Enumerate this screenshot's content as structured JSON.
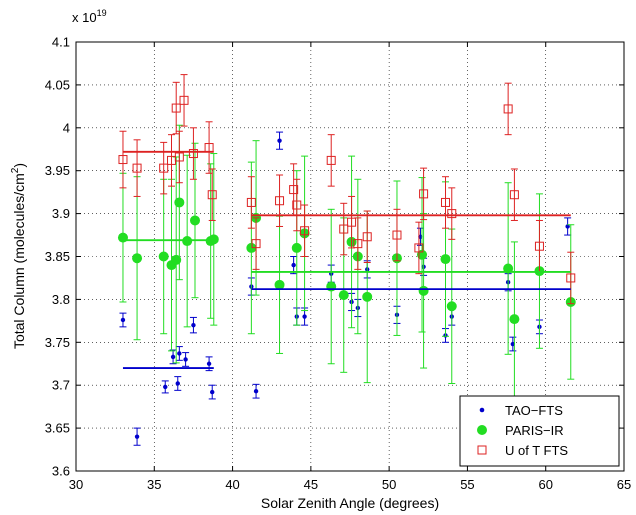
{
  "chart_data": {
    "type": "scatter",
    "title": "",
    "xlabel": "Solar Zenith Angle (degrees)",
    "ylabel": "Total Column (molecules/cm²)",
    "ylabel_main": "Total Column (molecules/cm",
    "ylabel_sup": "2",
    "ylabel_end": ")",
    "y_multiplier_base": "x 10",
    "y_multiplier_exp": "19",
    "xlim": [
      30,
      65
    ],
    "ylim": [
      3.6,
      4.1
    ],
    "xticks": [
      30,
      35,
      40,
      45,
      50,
      55,
      60,
      65
    ],
    "xtick_labels": [
      "30",
      "35",
      "40",
      "45",
      "50",
      "55",
      "60",
      "65"
    ],
    "yticks": [
      3.6,
      3.65,
      3.7,
      3.75,
      3.8,
      3.85,
      3.9,
      3.95,
      4.0,
      4.05,
      4.1
    ],
    "ytick_labels": [
      "3.6",
      "3.65",
      "3.7",
      "3.75",
      "3.8",
      "3.85",
      "3.9",
      "3.95",
      "4",
      "4.05",
      "4.1"
    ],
    "grid": true,
    "legend": "bottom-right",
    "series": [
      {
        "name": "TAO−FTS",
        "color": "#0000cc",
        "marker": "dot",
        "points": [
          [
            33.0,
            3.776,
            0.008
          ],
          [
            33.9,
            3.64,
            0.01
          ],
          [
            35.7,
            3.698,
            0.007
          ],
          [
            36.2,
            3.733,
            0.008
          ],
          [
            36.5,
            3.702,
            0.008
          ],
          [
            36.6,
            3.737,
            0.008
          ],
          [
            37.0,
            3.73,
            0.008
          ],
          [
            37.5,
            3.77,
            0.009
          ],
          [
            38.5,
            3.725,
            0.008
          ],
          [
            38.7,
            3.692,
            0.008
          ],
          [
            41.2,
            3.815,
            0.01
          ],
          [
            41.5,
            3.693,
            0.008
          ],
          [
            43.0,
            3.985,
            0.01
          ],
          [
            43.9,
            3.84,
            0.01
          ],
          [
            44.1,
            3.78,
            0.01
          ],
          [
            44.6,
            3.78,
            0.01
          ],
          [
            46.3,
            3.83,
            0.01
          ],
          [
            47.6,
            3.797,
            0.01
          ],
          [
            48.0,
            3.79,
            0.01
          ],
          [
            48.6,
            3.835,
            0.01
          ],
          [
            50.5,
            3.782,
            0.01
          ],
          [
            52.0,
            3.873,
            0.01
          ],
          [
            52.2,
            3.838,
            0.01
          ],
          [
            53.6,
            3.758,
            0.008
          ],
          [
            54.0,
            3.78,
            0.01
          ],
          [
            57.6,
            3.82,
            0.01
          ],
          [
            57.9,
            3.748,
            0.008
          ],
          [
            59.6,
            3.768,
            0.008
          ],
          [
            61.4,
            3.885,
            0.01
          ]
        ],
        "fit": {
          "segments": [
            [
              33.0,
              38.8,
              3.72
            ],
            [
              41.2,
              61.6,
              3.812
            ]
          ]
        }
      },
      {
        "name": "PARIS−IR",
        "color": "#22dd22",
        "marker": "circle",
        "points": [
          [
            33.0,
            3.872,
            0.075
          ],
          [
            33.9,
            3.848,
            0.095
          ],
          [
            35.6,
            3.85,
            0.09
          ],
          [
            36.1,
            3.84,
            0.1
          ],
          [
            36.4,
            3.846,
            0.12
          ],
          [
            36.6,
            3.913,
            0.09
          ],
          [
            37.1,
            3.868,
            0.1
          ],
          [
            37.6,
            3.892,
            0.09
          ],
          [
            38.6,
            3.868,
            0.09
          ],
          [
            38.8,
            3.87,
            0.1
          ],
          [
            41.2,
            3.86,
            0.1
          ],
          [
            41.5,
            3.895,
            0.09
          ],
          [
            43.0,
            3.817,
            0.08
          ],
          [
            44.1,
            3.86,
            0.09
          ],
          [
            44.6,
            3.877,
            0.09
          ],
          [
            46.3,
            3.815,
            0.09
          ],
          [
            47.1,
            3.805,
            0.09
          ],
          [
            47.6,
            3.867,
            0.1
          ],
          [
            48.0,
            3.85,
            0.09
          ],
          [
            48.6,
            3.803,
            0.1
          ],
          [
            50.5,
            3.848,
            0.09
          ],
          [
            52.1,
            3.852,
            0.09
          ],
          [
            52.2,
            3.81,
            0.09
          ],
          [
            53.6,
            3.847,
            0.09
          ],
          [
            54.0,
            3.792,
            0.09
          ],
          [
            57.6,
            3.836,
            0.1
          ],
          [
            58.0,
            3.777,
            0.09
          ],
          [
            59.6,
            3.833,
            0.09
          ],
          [
            61.6,
            3.797,
            0.09
          ]
        ],
        "fit": {
          "segments": [
            [
              33.0,
              38.8,
              3.869
            ],
            [
              41.2,
              61.6,
              3.832
            ]
          ]
        }
      },
      {
        "name": "U of T FTS",
        "color": "#dd2222",
        "marker": "square",
        "points": [
          [
            33.0,
            3.963,
            0.033
          ],
          [
            33.9,
            3.953,
            0.033
          ],
          [
            35.6,
            3.953,
            0.03
          ],
          [
            36.1,
            3.962,
            0.03
          ],
          [
            36.4,
            4.023,
            0.03
          ],
          [
            36.6,
            3.966,
            0.03
          ],
          [
            36.9,
            4.032,
            0.03
          ],
          [
            37.5,
            3.97,
            0.03
          ],
          [
            38.5,
            3.977,
            0.03
          ],
          [
            38.7,
            3.922,
            0.03
          ],
          [
            41.2,
            3.913,
            0.03
          ],
          [
            41.5,
            3.865,
            0.03
          ],
          [
            43.0,
            3.915,
            0.03
          ],
          [
            43.9,
            3.928,
            0.03
          ],
          [
            44.1,
            3.91,
            0.03
          ],
          [
            44.6,
            3.88,
            0.03
          ],
          [
            46.3,
            3.962,
            0.03
          ],
          [
            47.1,
            3.882,
            0.03
          ],
          [
            47.6,
            3.89,
            0.03
          ],
          [
            48.0,
            3.865,
            0.03
          ],
          [
            48.6,
            3.873,
            0.03
          ],
          [
            50.5,
            3.875,
            0.03
          ],
          [
            51.9,
            3.86,
            0.03
          ],
          [
            52.2,
            3.923,
            0.03
          ],
          [
            53.6,
            3.913,
            0.03
          ],
          [
            54.0,
            3.9,
            0.03
          ],
          [
            57.6,
            4.022,
            0.03
          ],
          [
            58.0,
            3.922,
            0.03
          ],
          [
            59.6,
            3.862,
            0.03
          ],
          [
            61.6,
            3.825,
            0.03
          ]
        ],
        "fit": {
          "segments": [
            [
              33.0,
              38.8,
              3.972
            ],
            [
              41.2,
              61.6,
              3.898
            ]
          ]
        }
      }
    ]
  }
}
